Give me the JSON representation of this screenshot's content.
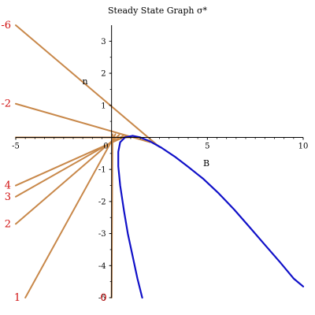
{
  "chart_data": {
    "type": "line",
    "title": "Steady State Graph  σ*",
    "xlabel": "B",
    "ylabel": "n",
    "xlim": [
      -5,
      10
    ],
    "ylim": [
      -5,
      3.5
    ],
    "x_ticks": [
      -5,
      5,
      10
    ],
    "x_tick_labels": [
      "-5",
      "5",
      "10"
    ],
    "y_ticks": [
      -5,
      -4,
      -3,
      -2,
      -1,
      1,
      2,
      3
    ],
    "y_tick_labels": [
      "-5",
      "-4",
      "-3",
      "-2",
      "-1",
      "1",
      "2",
      "3"
    ],
    "origin_label": "0",
    "grid": false,
    "colors": {
      "lines": "#c8884a",
      "curve": "#1010c8",
      "labels": "#d01010",
      "axes": "#000000"
    },
    "lines": [
      {
        "label": "-6",
        "points": [
          [
            -5,
            3.5
          ],
          [
            2.5,
            -0.3
          ]
        ]
      },
      {
        "label": "-2",
        "points": [
          [
            -5,
            1.05
          ],
          [
            2.0,
            -0.15
          ]
        ]
      },
      {
        "label": "",
        "points": [
          [
            -5,
            0.0
          ],
          [
            1.0,
            0.0
          ]
        ]
      },
      {
        "label": "4",
        "points": [
          [
            -5,
            -1.5
          ],
          [
            0.8,
            0.05
          ]
        ]
      },
      {
        "label": "3",
        "points": [
          [
            -5,
            -1.85
          ],
          [
            0.6,
            0.05
          ]
        ]
      },
      {
        "label": "2",
        "points": [
          [
            -5,
            -2.7
          ],
          [
            0.4,
            0.08
          ]
        ]
      },
      {
        "label": "1",
        "points": [
          [
            -4.5,
            -5.0
          ],
          [
            0.2,
            0.1
          ]
        ]
      },
      {
        "label": "0",
        "points": [
          [
            0.0,
            -5.0
          ],
          [
            0.05,
            0.1
          ]
        ]
      }
    ],
    "curve": {
      "points": [
        [
          1.6,
          -5.0
        ],
        [
          1.35,
          -4.4
        ],
        [
          1.1,
          -3.7
        ],
        [
          0.85,
          -3.0
        ],
        [
          0.65,
          -2.3
        ],
        [
          0.45,
          -1.5
        ],
        [
          0.35,
          -0.9
        ],
        [
          0.35,
          -0.45
        ],
        [
          0.45,
          -0.15
        ],
        [
          0.7,
          0.0
        ],
        [
          1.1,
          0.05
        ],
        [
          1.5,
          0.0
        ],
        [
          2.0,
          -0.12
        ],
        [
          2.6,
          -0.32
        ],
        [
          3.3,
          -0.6
        ],
        [
          4.0,
          -0.92
        ],
        [
          4.8,
          -1.3
        ],
        [
          5.6,
          -1.75
        ],
        [
          6.4,
          -2.25
        ],
        [
          7.2,
          -2.8
        ],
        [
          8.0,
          -3.35
        ],
        [
          8.8,
          -3.9
        ],
        [
          9.5,
          -4.4
        ],
        [
          10.0,
          -4.65
        ]
      ]
    }
  }
}
